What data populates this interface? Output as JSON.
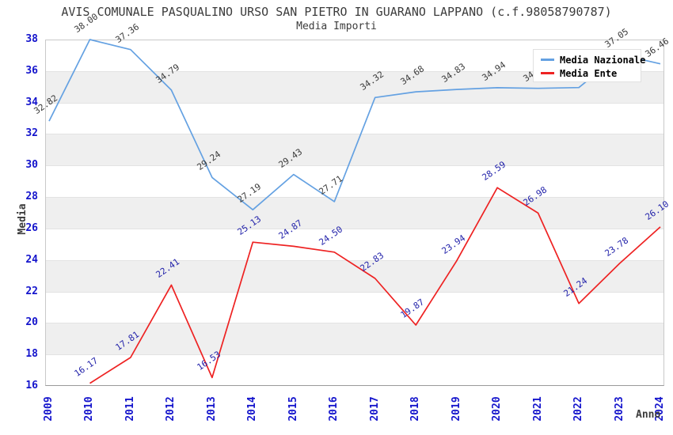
{
  "chart_data": {
    "type": "line",
    "title": "AVIS COMUNALE PASQUALINO URSO SAN PIETRO IN GUARANO LAPPANO (c.f.98058790787)",
    "subtitle": "Media Importi",
    "xlabel": "Anno",
    "ylabel": "Media",
    "x_ticks": [
      2009,
      2010,
      2011,
      2012,
      2013,
      2014,
      2015,
      2016,
      2017,
      2018,
      2019,
      2020,
      2021,
      2022,
      2023,
      2024
    ],
    "y_ticks": [
      16,
      18,
      20,
      22,
      24,
      26,
      28,
      30,
      32,
      34,
      36,
      38
    ],
    "ylim": [
      16,
      38
    ],
    "grid": "horizontal-bands",
    "legend_position": "top-right",
    "colors": {
      "band_gray": "#efefef",
      "gridline": "#e3e3e3",
      "axis_tick_text": "#1414cc",
      "plot_border": "#c9c9c9"
    },
    "series": [
      {
        "name": "Media Nazionale",
        "color": "#64a1e2",
        "label_color": "#3a3a3a",
        "x": [
          2009,
          2010,
          2011,
          2012,
          2013,
          2014,
          2015,
          2016,
          2017,
          2018,
          2019,
          2020,
          2021,
          2022,
          2023,
          2024
        ],
        "values": [
          32.82,
          38.0,
          37.36,
          34.79,
          29.24,
          27.19,
          29.43,
          27.71,
          34.32,
          34.68,
          34.83,
          34.94,
          34.9,
          34.95,
          37.05,
          36.46
        ],
        "point_labels": [
          "32.82",
          "38.00",
          "37.36",
          "34.79",
          "29.24",
          "27.19",
          "29.43",
          "27.71",
          "34.32",
          "34.68",
          "34.83",
          "34.94",
          "34.90",
          "34.95",
          "37.05",
          "36.46"
        ]
      },
      {
        "name": "Media Ente",
        "color": "#ee2222",
        "label_color": "#2222aa",
        "x": [
          2010,
          2011,
          2012,
          2013,
          2014,
          2015,
          2016,
          2017,
          2018,
          2019,
          2020,
          2021,
          2022,
          2023,
          2024
        ],
        "values": [
          16.17,
          17.81,
          22.41,
          16.53,
          25.13,
          24.87,
          24.5,
          22.83,
          19.87,
          23.94,
          28.59,
          26.98,
          21.24,
          23.78,
          26.1
        ],
        "point_labels": [
          "16.17",
          "17.81",
          "22.41",
          "16.53",
          "25.13",
          "24.87",
          "24.50",
          "22.83",
          "19.87",
          "23.94",
          "28.59",
          "26.98",
          "21.24",
          "23.78",
          "26.10"
        ]
      }
    ]
  }
}
